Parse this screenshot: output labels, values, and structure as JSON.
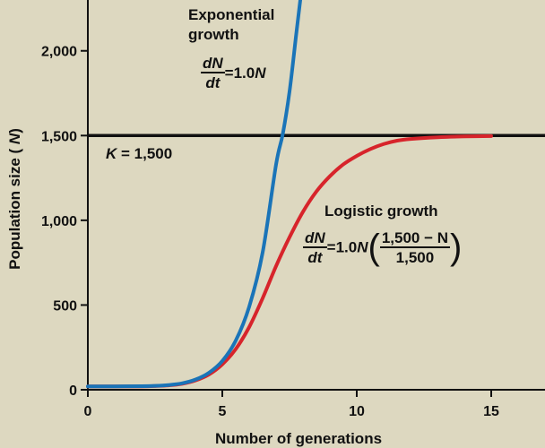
{
  "chart_data": {
    "type": "line",
    "xlabel": "Number of generations",
    "ylabel": "Population size (N)",
    "xlim": [
      0,
      17
    ],
    "ylim": [
      0,
      2300
    ],
    "x_ticks": [
      "0",
      "5",
      "10",
      "15"
    ],
    "y_ticks": [
      "0",
      "500",
      "1,000",
      "1,500",
      "2,000"
    ],
    "grid": false,
    "series": [
      {
        "name": "Exponential growth",
        "color": "#1a74b8",
        "x": [
          0,
          1,
          2,
          2.5,
          3,
          3.5,
          4,
          4.5,
          5,
          5.5,
          6,
          6.5,
          7,
          7.25,
          7.5,
          7.75,
          7.9
        ],
        "y": [
          20,
          20,
          21,
          23,
          28,
          38,
          60,
          100,
          170,
          290,
          490,
          810,
          1330,
          1510,
          1760,
          2100,
          2300
        ]
      },
      {
        "name": "Logistic growth",
        "color": "#d7242b",
        "x": [
          0,
          1,
          2,
          2.5,
          3,
          3.5,
          4,
          4.5,
          5,
          5.5,
          6,
          6.5,
          7,
          7.5,
          8,
          8.5,
          9,
          9.5,
          10,
          10.5,
          11,
          11.5,
          12,
          13,
          14,
          15
        ],
        "y": [
          20,
          20,
          20,
          22,
          26,
          35,
          55,
          90,
          150,
          240,
          370,
          540,
          730,
          900,
          1050,
          1170,
          1260,
          1330,
          1380,
          1420,
          1450,
          1470,
          1480,
          1490,
          1495,
          1497
        ]
      }
    ],
    "reference_line": {
      "y": 1500,
      "color": "#111111"
    },
    "annotations": {
      "exponential_label": "Exponential growth",
      "logistic_label": "Logistic growth",
      "k_label": "K = 1,500",
      "k_var": "K",
      "k_value": " = 1,500",
      "eq_numerator": "dN",
      "eq_denominator": "dt",
      "eq_exp_rhs": "=1.0N",
      "eq_exp_prefix": "=1.0",
      "eq_exp_var": "N",
      "eq_log_prefix": "=1.0",
      "eq_log_var": "N",
      "eq_log_numerator": "1,500 − N",
      "eq_log_denominator": "1,500"
    }
  }
}
